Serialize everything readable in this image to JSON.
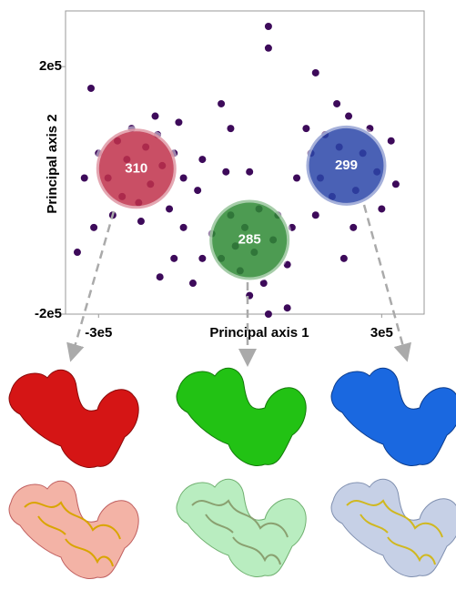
{
  "chart_data": {
    "type": "scatter",
    "xlabel": "Principal axis 1",
    "ylabel": "Principal axis 2",
    "xlim": [
      -370000,
      390000
    ],
    "ylim": [
      -200000,
      290000
    ],
    "xticks": [
      {
        "value": -300000,
        "label": "-3e5"
      },
      {
        "value": 300000,
        "label": "3e5"
      }
    ],
    "yticks": [
      {
        "value": 200000,
        "label": "2e5"
      },
      {
        "value": -200000,
        "label": "-2e5"
      }
    ],
    "color": "#3d0a5a",
    "x": [
      -300000,
      -280000,
      -260000,
      -250000,
      -240000,
      -230000,
      -215000,
      -200000,
      -190000,
      -175000,
      -165000,
      -150000,
      -140000,
      -130000,
      -310000,
      -270000,
      -180000,
      -120000,
      -330000,
      -210000,
      -60000,
      -40000,
      -20000,
      0,
      10000,
      30000,
      50000,
      70000,
      -10000,
      40000,
      80000,
      -80000,
      100000,
      20000,
      60000,
      150000,
      170000,
      180000,
      195000,
      210000,
      230000,
      245000,
      260000,
      275000,
      290000,
      300000,
      240000,
      205000,
      320000,
      160000,
      330000,
      -316000,
      -345000,
      60000,
      60000,
      -30000,
      -80000,
      -90000,
      -120000,
      -20000,
      20000,
      120000,
      110000,
      140000,
      -140000,
      -100000,
      100000,
      -170000,
      220000,
      160000,
      -40000
    ],
    "values": [
      60000,
      20000,
      80000,
      -10000,
      50000,
      100000,
      -20000,
      70000,
      10000,
      90000,
      40000,
      -30000,
      60000,
      110000,
      -60000,
      -40000,
      120000,
      20000,
      20000,
      -50000,
      -70000,
      -110000,
      -40000,
      -130000,
      -60000,
      -100000,
      -150000,
      -80000,
      -90000,
      -30000,
      -40000,
      -110000,
      -120000,
      -170000,
      -200000,
      60000,
      20000,
      90000,
      -10000,
      70000,
      120000,
      0,
      60000,
      100000,
      30000,
      -30000,
      -60000,
      140000,
      80000,
      -40000,
      10000,
      165000,
      -100000,
      265000,
      230000,
      30000,
      50000,
      0,
      -60000,
      100000,
      30000,
      20000,
      -60000,
      100000,
      -110000,
      -150000,
      -190000,
      -140000,
      -110000,
      190000,
      140000
    ],
    "clusters": [
      {
        "count": 310,
        "x": -220000,
        "y": 35000,
        "color": "#c0304a"
      },
      {
        "count": 285,
        "x": 20000,
        "y": -80000,
        "color": "#2e8a34"
      },
      {
        "count": 299,
        "x": 225000,
        "y": 40000,
        "color": "#2a45a8"
      }
    ]
  }
}
